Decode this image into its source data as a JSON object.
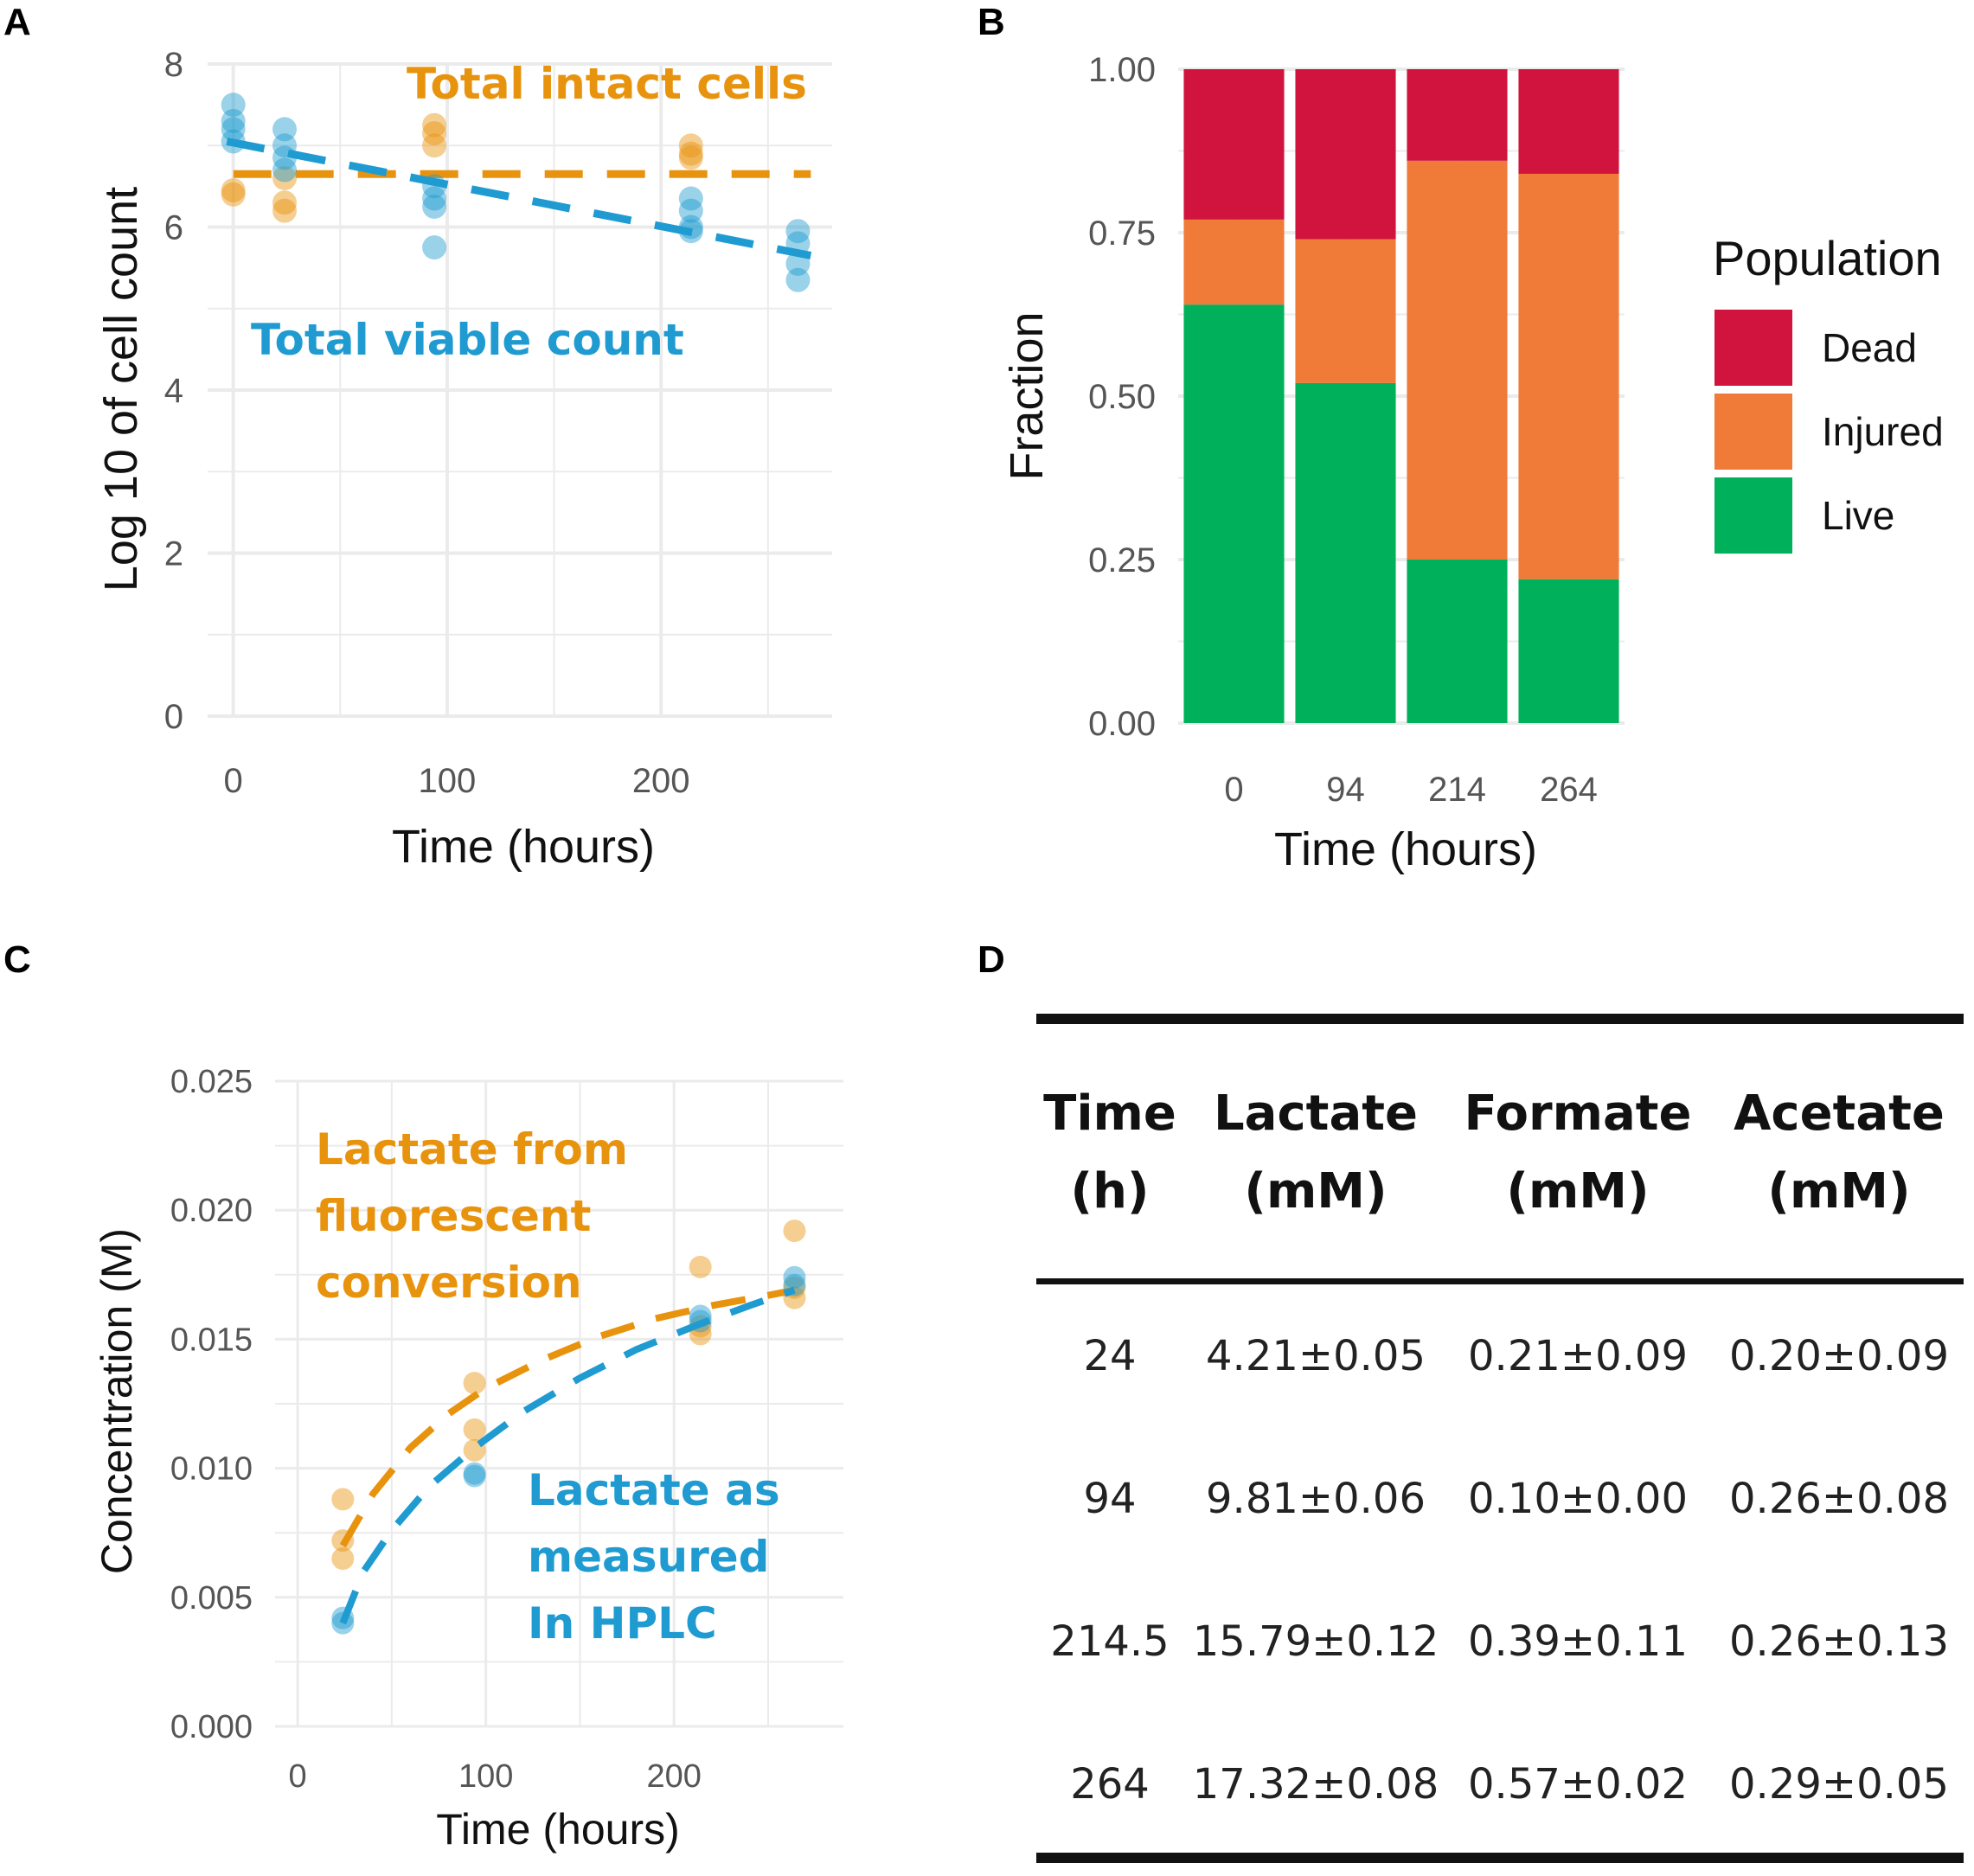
{
  "panels": {
    "a": "A",
    "b": "B",
    "c": "C",
    "d": "D"
  },
  "colors": {
    "orange": "#e8930e",
    "blue": "#1f9bd1",
    "dead": "#d0143d",
    "injured": "#f07a38",
    "live": "#00b05a",
    "grid": "#ebebeb"
  },
  "chart_data": [
    {
      "id": "A",
      "type": "scatter",
      "title": "",
      "xlabel": "Time (hours)",
      "ylabel": "Log 10 of cell count",
      "xlim": [
        -12,
        280
      ],
      "ylim": [
        0,
        8
      ],
      "xticks": [
        0,
        100,
        200
      ],
      "yticks": [
        0,
        2,
        4,
        6,
        8
      ],
      "series": [
        {
          "name": "Total intact cells",
          "color": "#e8930e",
          "points": [
            [
              0,
              6.45
            ],
            [
              0,
              6.4
            ],
            [
              24,
              6.3
            ],
            [
              24,
              6.2
            ],
            [
              24,
              6.6
            ],
            [
              94,
              7.25
            ],
            [
              94,
              7.15
            ],
            [
              94,
              7.0
            ],
            [
              214,
              7.0
            ],
            [
              214,
              6.9
            ],
            [
              214,
              6.85
            ]
          ],
          "trend": [
            [
              0,
              6.65
            ],
            [
              270,
              6.65
            ]
          ]
        },
        {
          "name": "Total viable count",
          "color": "#1f9bd1",
          "points": [
            [
              0,
              7.5
            ],
            [
              0,
              7.3
            ],
            [
              0,
              7.2
            ],
            [
              0,
              7.05
            ],
            [
              24,
              7.2
            ],
            [
              24,
              7.0
            ],
            [
              24,
              6.85
            ],
            [
              24,
              6.7
            ],
            [
              94,
              6.5
            ],
            [
              94,
              6.35
            ],
            [
              94,
              6.25
            ],
            [
              94,
              5.75
            ],
            [
              214,
              6.35
            ],
            [
              214,
              6.2
            ],
            [
              214,
              6.0
            ],
            [
              214,
              5.95
            ],
            [
              264,
              5.95
            ],
            [
              264,
              5.8
            ],
            [
              264,
              5.55
            ],
            [
              264,
              5.35
            ]
          ],
          "trend": [
            [
              -3,
              7.05
            ],
            [
              270,
              5.65
            ]
          ]
        }
      ],
      "annotations": [
        "Total intact cells",
        "Total viable count"
      ]
    },
    {
      "id": "B",
      "type": "bar",
      "stacked": true,
      "xlabel": "Time (hours)",
      "ylabel": "Fraction",
      "categories": [
        "0",
        "94",
        "214",
        "264"
      ],
      "ylim": [
        0,
        1
      ],
      "yticks": [
        "0.00",
        "0.25",
        "0.50",
        "0.75",
        "1.00"
      ],
      "series": [
        {
          "name": "Live",
          "color": "#00b05a",
          "values": [
            0.64,
            0.52,
            0.25,
            0.22
          ]
        },
        {
          "name": "Injured",
          "color": "#f07a38",
          "values": [
            0.13,
            0.22,
            0.61,
            0.62
          ]
        },
        {
          "name": "Dead",
          "color": "#d0143d",
          "values": [
            0.23,
            0.26,
            0.14,
            0.16
          ]
        }
      ],
      "legend": {
        "title": "Population",
        "items": [
          "Dead",
          "Injured",
          "Live"
        ],
        "placement": "right"
      }
    },
    {
      "id": "C",
      "type": "scatter",
      "xlabel": "Time (hours)",
      "ylabel": "Concentration (M)",
      "xlim": [
        -12,
        290
      ],
      "ylim": [
        0,
        0.025
      ],
      "xticks": [
        0,
        100,
        200
      ],
      "yticks": [
        "0.000",
        "0.005",
        "0.010",
        "0.015",
        "0.020",
        "0.025"
      ],
      "series": [
        {
          "name": "Lactate from fluorescent conversion",
          "color": "#e8930e",
          "points": [
            [
              24,
              0.0088
            ],
            [
              24,
              0.0072
            ],
            [
              24,
              0.0065
            ],
            [
              94,
              0.0133
            ],
            [
              94,
              0.0115
            ],
            [
              94,
              0.0107
            ],
            [
              214,
              0.0178
            ],
            [
              214,
              0.0155
            ],
            [
              214,
              0.0152
            ],
            [
              264,
              0.0192
            ],
            [
              264,
              0.017
            ],
            [
              264,
              0.0166
            ]
          ],
          "trend": [
            [
              24,
              0.007
            ],
            [
              40,
              0.009
            ],
            [
              60,
              0.0108
            ],
            [
              80,
              0.0121
            ],
            [
              100,
              0.0131
            ],
            [
              130,
              0.0142
            ],
            [
              160,
              0.0151
            ],
            [
              190,
              0.0158
            ],
            [
              220,
              0.0163
            ],
            [
              250,
              0.0167
            ],
            [
              264,
              0.0169
            ]
          ]
        },
        {
          "name": "Lactate as measured in HPLC",
          "color": "#1f9bd1",
          "points": [
            [
              24,
              0.0042
            ],
            [
              24,
              0.004
            ],
            [
              94,
              0.0098
            ],
            [
              94,
              0.0097
            ],
            [
              214,
              0.0159
            ],
            [
              214,
              0.0157
            ],
            [
              264,
              0.0174
            ],
            [
              264,
              0.0171
            ]
          ],
          "trend": [
            [
              24,
              0.004
            ],
            [
              35,
              0.006
            ],
            [
              50,
              0.0076
            ],
            [
              70,
              0.0093
            ],
            [
              94,
              0.0108
            ],
            [
              120,
              0.0122
            ],
            [
              150,
              0.0135
            ],
            [
              180,
              0.0146
            ],
            [
              214,
              0.0156
            ],
            [
              240,
              0.0163
            ],
            [
              264,
              0.0169
            ]
          ]
        }
      ],
      "annotations": [
        [
          "Lactate from",
          "fluorescent",
          "conversion"
        ],
        [
          "Lactate as",
          "measured",
          "In HPLC"
        ]
      ]
    },
    {
      "id": "D",
      "type": "table",
      "columns": [
        [
          "Time",
          "(h)"
        ],
        [
          "Lactate",
          "(mM)"
        ],
        [
          "Formate",
          "(mM)"
        ],
        [
          "Acetate",
          "(mM)"
        ]
      ],
      "rows": [
        [
          "24",
          "4.21±0.05",
          "0.21±0.09",
          "0.20±0.09"
        ],
        [
          "94",
          "9.81±0.06",
          "0.10±0.00",
          "0.26±0.08"
        ],
        [
          "214.5",
          "15.79±0.12",
          "0.39±0.11",
          "0.26±0.13"
        ],
        [
          "264",
          "17.32±0.08",
          "0.57±0.02",
          "0.29±0.05"
        ]
      ]
    }
  ]
}
